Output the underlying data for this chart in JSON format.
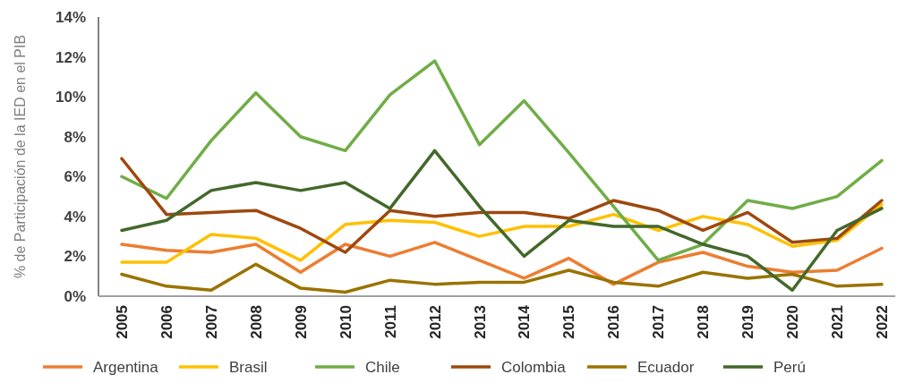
{
  "chart_data": {
    "type": "line",
    "ylabel": "% de Participación de la IED en el PIB",
    "categories": [
      "2005",
      "2006",
      "2007",
      "2008",
      "2009",
      "2010",
      "2011",
      "2012",
      "2013",
      "2014",
      "2015",
      "2016",
      "2017",
      "2018",
      "2019",
      "2020",
      "2021",
      "2022"
    ],
    "series": [
      {
        "name": "Argentina",
        "color": "#ed7d31",
        "values": [
          2.6,
          2.3,
          2.2,
          2.6,
          1.2,
          2.6,
          2.0,
          2.7,
          1.8,
          0.9,
          1.9,
          0.6,
          1.7,
          2.2,
          1.5,
          1.2,
          1.3,
          2.4
        ]
      },
      {
        "name": "Brasil",
        "color": "#ffc000",
        "values": [
          1.7,
          1.7,
          3.1,
          2.9,
          1.8,
          3.6,
          3.8,
          3.7,
          3.0,
          3.5,
          3.5,
          4.1,
          3.3,
          4.0,
          3.6,
          2.5,
          2.8,
          4.6
        ]
      },
      {
        "name": "Chile",
        "color": "#70ad47",
        "values": [
          6.0,
          4.9,
          7.8,
          10.2,
          8.0,
          7.3,
          10.1,
          11.8,
          7.6,
          9.8,
          7.2,
          4.5,
          1.8,
          2.6,
          4.8,
          4.4,
          5.0,
          6.8
        ]
      },
      {
        "name": "Colombia",
        "color": "#9e480e",
        "values": [
          6.9,
          4.1,
          4.2,
          4.3,
          3.4,
          2.2,
          4.3,
          4.0,
          4.2,
          4.2,
          3.9,
          4.8,
          4.3,
          3.3,
          4.2,
          2.7,
          2.9,
          4.8
        ]
      },
      {
        "name": "Ecuador",
        "color": "#997300",
        "values": [
          1.1,
          0.5,
          0.3,
          1.6,
          0.4,
          0.2,
          0.8,
          0.6,
          0.7,
          0.7,
          1.3,
          0.7,
          0.5,
          1.2,
          0.9,
          1.1,
          0.5,
          0.6
        ]
      },
      {
        "name": "Perú",
        "color": "#43682b",
        "values": [
          3.3,
          3.8,
          5.3,
          5.7,
          5.3,
          5.7,
          4.4,
          7.3,
          4.5,
          2.0,
          3.8,
          3.5,
          3.5,
          2.6,
          2.0,
          0.3,
          3.3,
          4.4
        ]
      }
    ],
    "ylim": [
      0,
      14
    ],
    "yticks": [
      {
        "value": 0,
        "label": "0%"
      },
      {
        "value": 2,
        "label": "2%"
      },
      {
        "value": 4,
        "label": "4%"
      },
      {
        "value": 6,
        "label": "6%"
      },
      {
        "value": 8,
        "label": "8%"
      },
      {
        "value": 10,
        "label": "10%"
      },
      {
        "value": 12,
        "label": "12%"
      },
      {
        "value": 14,
        "label": "14%"
      }
    ],
    "grid": false,
    "legend": "bottom",
    "marker": "none",
    "line_style": "solid"
  }
}
